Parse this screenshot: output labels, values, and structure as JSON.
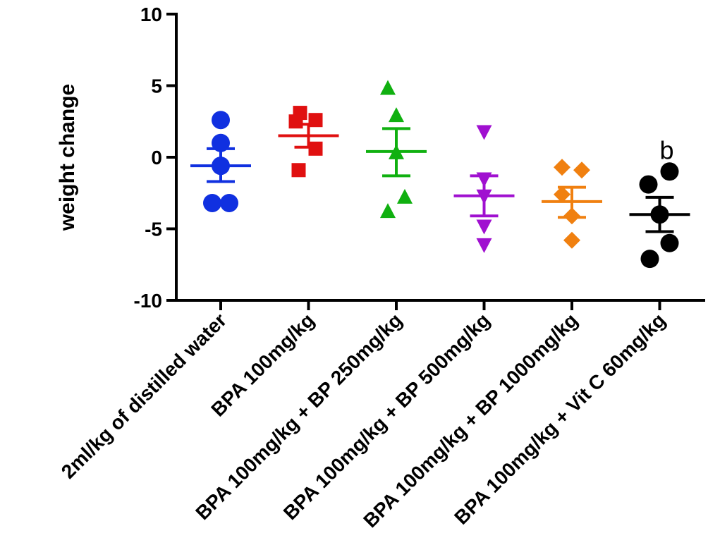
{
  "chart_data": {
    "type": "scatter",
    "title": "",
    "xlabel": "",
    "ylabel": "weight change",
    "ylim": [
      -10,
      10
    ],
    "yticks": [
      10,
      5,
      0,
      -5,
      -10
    ],
    "grid": false,
    "categories": [
      "2ml/kg of distilled water",
      "BPA 100mg/kg",
      "BPA 100mg/kg + BP 250mg/kg",
      "BPA 100mg/kg + BP 500mg/kg",
      "BPA 100mg/kg + BP 1000mg/kg",
      "BPA 100mg/kg + Vit C 60mg/kg"
    ],
    "series": [
      {
        "name": "2ml/kg of distilled water",
        "color": "#1030e0",
        "marker": "circle",
        "points": [
          2.6,
          1.0,
          -0.6,
          -3.2,
          -3.2
        ],
        "mean": -0.6,
        "sem_upper": 0.6,
        "sem_lower": -1.7
      },
      {
        "name": "BPA 100mg/kg",
        "color": "#e01010",
        "marker": "square",
        "points": [
          3.1,
          2.5,
          2.6,
          0.6,
          -0.9
        ],
        "mean": 1.5,
        "sem_upper": 2.3,
        "sem_lower": 0.7
      },
      {
        "name": "BPA 100mg/kg + BP 250mg/kg",
        "color": "#10b010",
        "marker": "triangle-up",
        "points": [
          4.8,
          2.9,
          0.3,
          -2.8,
          -3.8
        ],
        "mean": 0.4,
        "sem_upper": 2.0,
        "sem_lower": -1.3
      },
      {
        "name": "BPA 100mg/kg + BP 500mg/kg",
        "color": "#a010d0",
        "marker": "triangle-down",
        "points": [
          1.8,
          -1.5,
          -2.7,
          -4.8,
          -6.1
        ],
        "mean": -2.7,
        "sem_upper": -1.3,
        "sem_lower": -4.1
      },
      {
        "name": "BPA 100mg/kg + BP 1000mg/kg",
        "color": "#f08010",
        "marker": "diamond",
        "points": [
          -0.7,
          -0.9,
          -2.6,
          -4.1,
          -5.8
        ],
        "mean": -3.1,
        "sem_upper": -2.1,
        "sem_lower": -4.2
      },
      {
        "name": "BPA 100mg/kg + Vit C 60mg/kg",
        "color": "#000000",
        "marker": "circle",
        "points": [
          -1.0,
          -1.9,
          -4.0,
          -6.0,
          -7.1
        ],
        "mean": -4.0,
        "sem_upper": -2.8,
        "sem_lower": -5.2,
        "annotation": "b"
      }
    ]
  }
}
